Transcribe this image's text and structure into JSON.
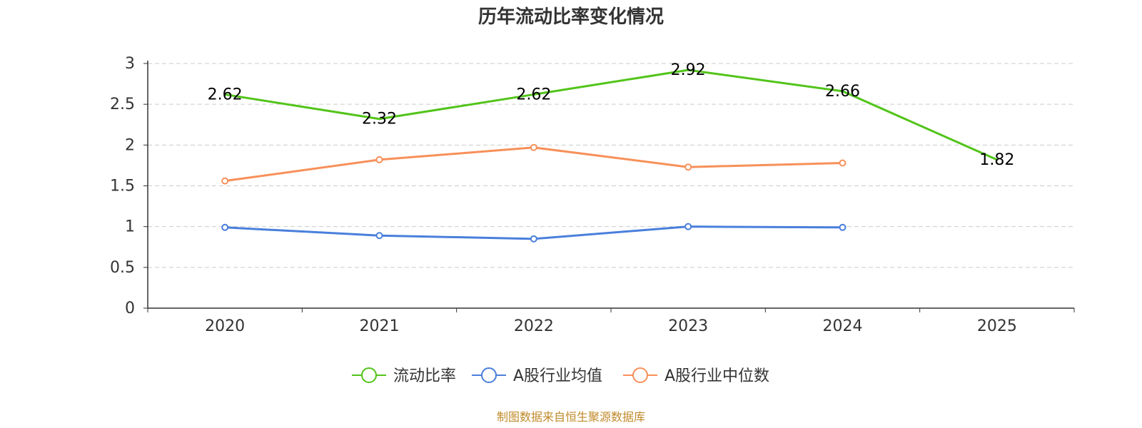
{
  "chart_data": {
    "type": "line",
    "title": "历年流动比率变化情况",
    "categories": [
      "2020",
      "2021",
      "2022",
      "2023",
      "2024",
      "2025"
    ],
    "y_ticks": [
      "0",
      "0.5",
      "1",
      "1.5",
      "2",
      "2.5",
      "3"
    ],
    "ylim": [
      0,
      3
    ],
    "grid": true,
    "legend_position": "bottom-center",
    "series": [
      {
        "name": "流动比率",
        "color": "#52c41a",
        "values": [
          2.62,
          2.32,
          2.62,
          2.92,
          2.66,
          1.82
        ],
        "labels": [
          "2.62",
          "2.32",
          "2.62",
          "2.92",
          "2.66",
          "1.82"
        ],
        "show_markers": false,
        "show_labels": true
      },
      {
        "name": "A股行业均值",
        "color": "#4a7fdc",
        "values": [
          0.99,
          0.89,
          0.85,
          1.0,
          0.99,
          null
        ],
        "show_markers": true,
        "show_labels": false
      },
      {
        "name": "A股行业中位数",
        "color": "#f79059",
        "values": [
          1.56,
          1.82,
          1.97,
          1.73,
          1.78,
          null
        ],
        "show_markers": true,
        "show_labels": false
      }
    ],
    "source": "制图数据来自恒生聚源数据库"
  }
}
